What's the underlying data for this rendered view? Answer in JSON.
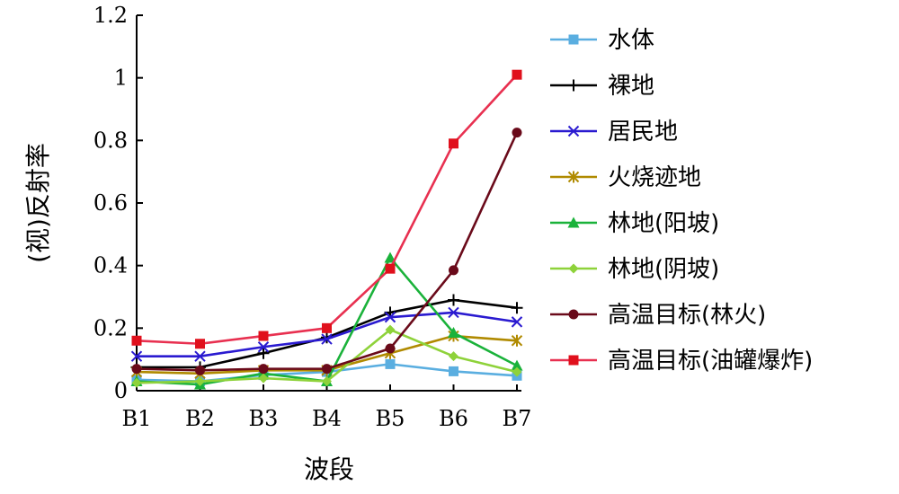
{
  "chart_data": {
    "type": "line",
    "categories": [
      "B1",
      "B2",
      "B3",
      "B4",
      "B5",
      "B6",
      "B7"
    ],
    "xlabel": "波段",
    "ylabel": "(视)反射率",
    "ylim": [
      0,
      1.2
    ],
    "yticks": [
      "0",
      "0.2",
      "0.4",
      "0.6",
      "0.8",
      "1",
      "1.2"
    ],
    "grid": false,
    "legend_position": "right",
    "series": [
      {
        "name": "水体",
        "color": "#5aaee0",
        "marker": "square",
        "values": [
          0.035,
          0.03,
          0.05,
          0.06,
          0.085,
          0.062,
          0.048
        ]
      },
      {
        "name": "裸地",
        "color": "#000000",
        "marker": "plus",
        "values": [
          0.075,
          0.075,
          0.12,
          0.17,
          0.25,
          0.29,
          0.265
        ]
      },
      {
        "name": "居民地",
        "color": "#2a1ad0",
        "marker": "x",
        "values": [
          0.11,
          0.11,
          0.14,
          0.165,
          0.235,
          0.25,
          0.22
        ]
      },
      {
        "name": "火烧迹地",
        "color": "#b08a00",
        "marker": "asterisk",
        "values": [
          0.06,
          0.055,
          0.065,
          0.065,
          0.12,
          0.175,
          0.16
        ]
      },
      {
        "name": "林地(阳坡)",
        "color": "#1ab23a",
        "marker": "triangle",
        "values": [
          0.03,
          0.02,
          0.055,
          0.03,
          0.425,
          0.185,
          0.08
        ]
      },
      {
        "name": "林地(阴坡)",
        "color": "#8ed23a",
        "marker": "diamond",
        "values": [
          0.025,
          0.03,
          0.04,
          0.03,
          0.195,
          0.11,
          0.06
        ]
      },
      {
        "name": "高温目标(林火)",
        "color": "#6a0a1a",
        "marker": "circle",
        "values": [
          0.07,
          0.065,
          0.07,
          0.07,
          0.135,
          0.385,
          0.825
        ]
      },
      {
        "name": "高温目标(油罐爆炸)",
        "color": "#e83050",
        "marker": "square",
        "markerColor": "#e0101c",
        "values": [
          0.16,
          0.15,
          0.175,
          0.2,
          0.39,
          0.79,
          1.01
        ]
      }
    ]
  }
}
